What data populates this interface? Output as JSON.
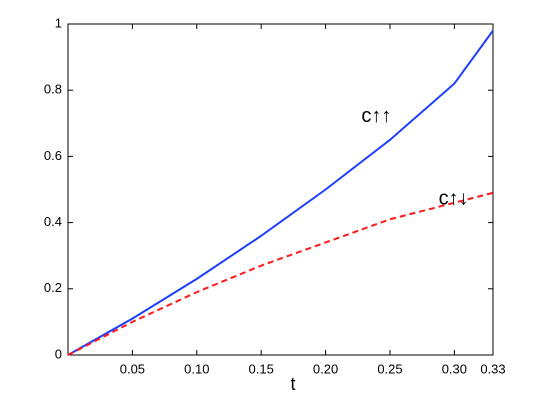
{
  "chart_data": {
    "type": "line",
    "xlabel": "t",
    "x": [
      0,
      0.05,
      0.1,
      0.15,
      0.2,
      0.25,
      0.3,
      0.33
    ],
    "series": [
      {
        "name": "c↑↑",
        "color": "#1f3fff",
        "dash": false,
        "values": [
          0,
          0.11,
          0.23,
          0.36,
          0.5,
          0.65,
          0.82,
          0.98
        ]
      },
      {
        "name": "c↑↓",
        "color": "#ff1a1a",
        "dash": true,
        "values": [
          0,
          0.1,
          0.19,
          0.27,
          0.34,
          0.41,
          0.46,
          0.49
        ]
      }
    ],
    "xlim": [
      0,
      0.33
    ],
    "xticks": [
      0.05,
      {
        "value": 0.1,
        "label": "0.10"
      },
      0.15,
      {
        "value": 0.2,
        "label": "0.20"
      },
      0.25,
      {
        "value": 0.3,
        "label": "0.30"
      },
      0.33
    ],
    "ylim": [
      0,
      1
    ],
    "yticks": [
      0,
      0.2,
      0.4,
      0.6,
      0.8,
      1
    ]
  }
}
